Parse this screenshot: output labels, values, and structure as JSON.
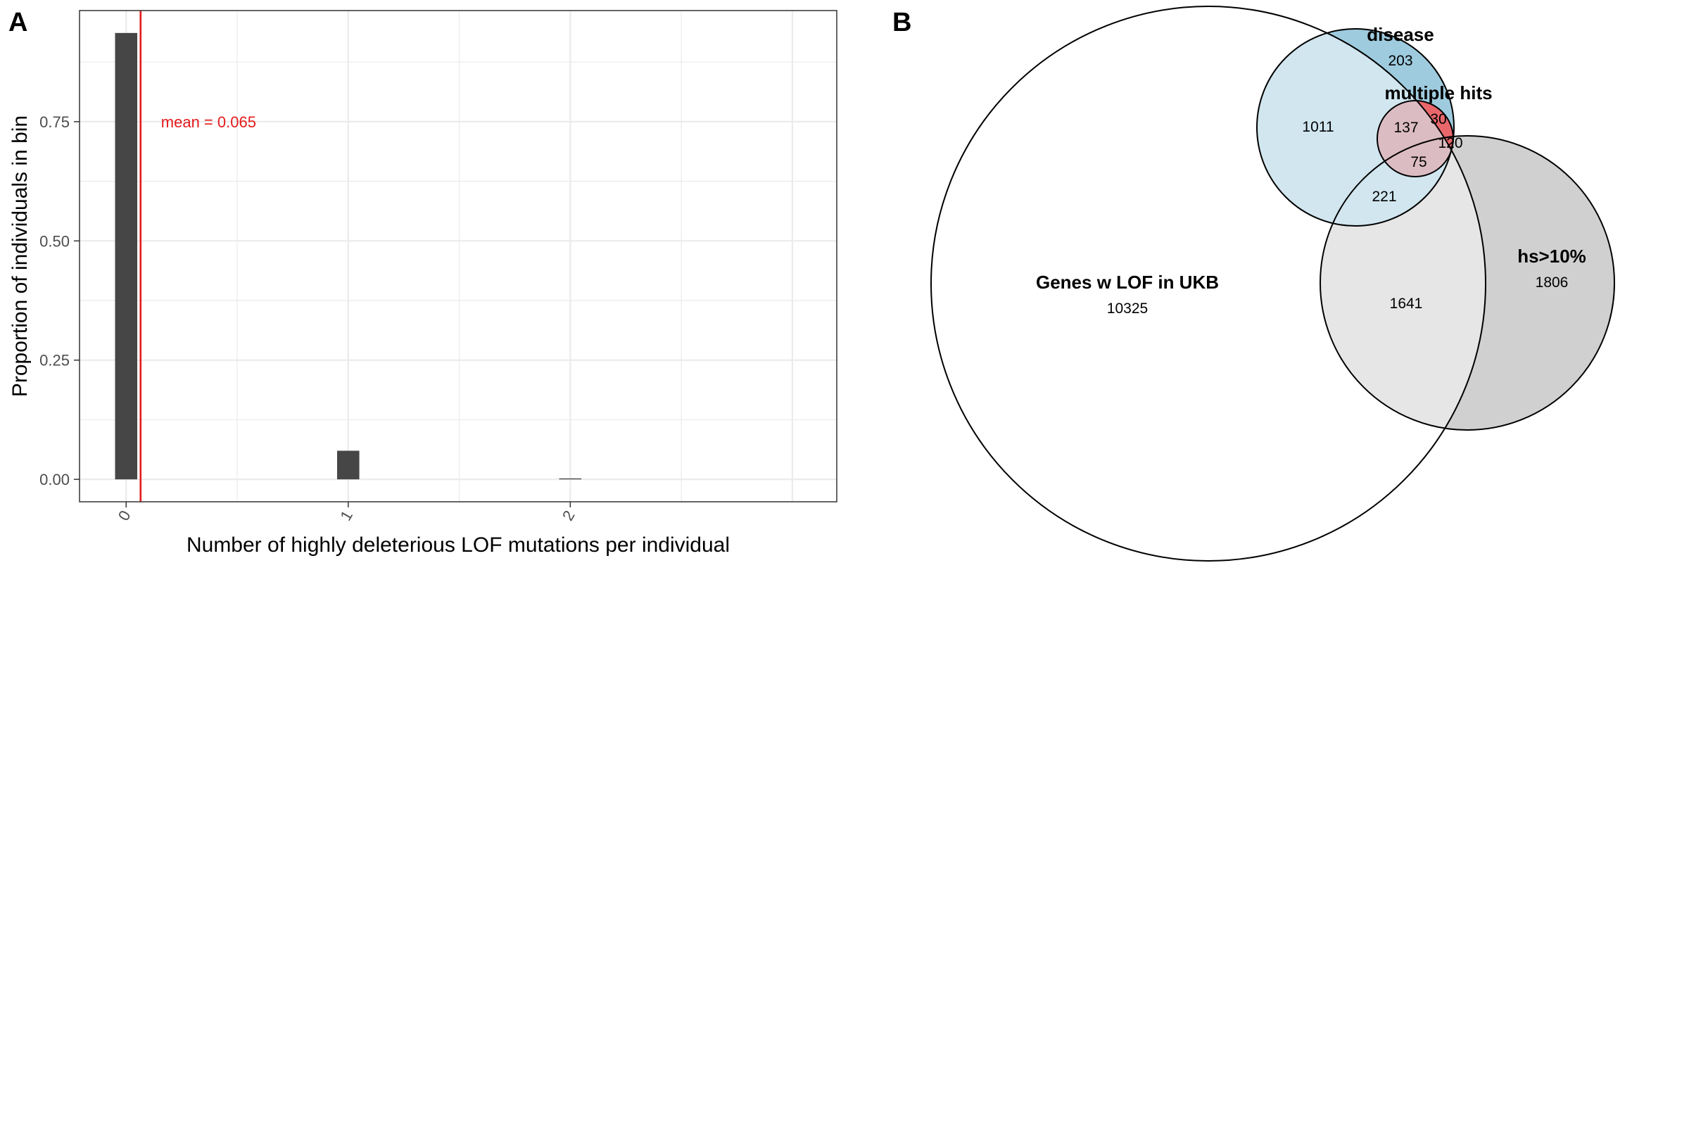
{
  "panels": {
    "a_label": "A",
    "b_label": "B"
  },
  "chart_data": [
    {
      "panel": "A",
      "type": "bar",
      "xlabel": "Number of highly deleterious LOF mutations per individual",
      "ylabel": "Proportion of individuals in bin",
      "categories": [
        "0",
        "1",
        "2"
      ],
      "x": [
        0,
        1,
        2
      ],
      "values": [
        0.936,
        0.06,
        0.002
      ],
      "ylim": [
        -0.047,
        0.983
      ],
      "xlim": [
        -0.21,
        3.2
      ],
      "yticks": [
        0.0,
        0.25,
        0.5,
        0.75
      ],
      "ytick_labels": [
        "0.00",
        "0.25",
        "0.50",
        "0.75"
      ],
      "xticks": [
        0,
        1,
        2
      ],
      "xtick_labels": [
        "0",
        "1",
        "2"
      ],
      "grid": true,
      "mean_line": {
        "value": 0.065,
        "label": "mean = 0.065",
        "color": "#e41a1c"
      },
      "bar_color": "#464646"
    },
    {
      "panel": "B",
      "type": "venn",
      "sets": [
        {
          "name": "Genes w LOF in UKB",
          "count": "10325",
          "color": "#ffffff"
        },
        {
          "name": "disease",
          "count": "203",
          "color": "#d1e6ef"
        },
        {
          "name": "multiple hits",
          "count": "30",
          "color": "#dcbcc3"
        },
        {
          "name": "hs>10%",
          "count": "1806",
          "color": "#d0d0d0"
        }
      ],
      "intersections": {
        "lof_disease": "1011",
        "lof_disease_multi": "137",
        "lof_disease_multi_hs": "75",
        "disease_multi_hs": "120",
        "lof_disease_hs": "221",
        "lof_hs": "1641"
      },
      "colors": {
        "disease_only": "#9ecbde",
        "multi_only": "#e8676b",
        "hs_overlap": "#e6e6e6"
      }
    }
  ]
}
